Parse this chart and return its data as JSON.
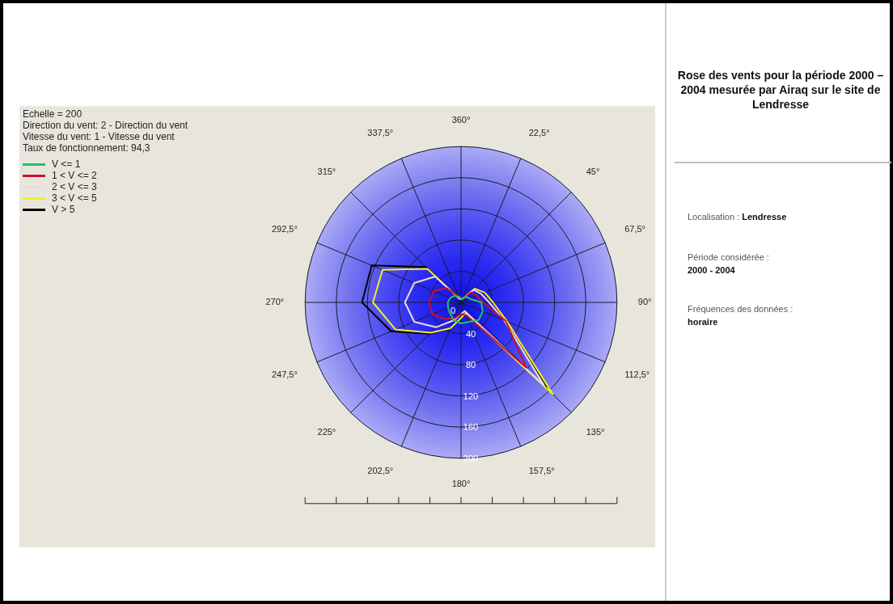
{
  "chart_data": {
    "type": "radar",
    "title": "Rose des vents pour la période 2000 – 2004 mesurée par Airaq sur le site de Lendresse",
    "categories": [
      "360°",
      "22,5°",
      "45°",
      "67,5°",
      "90°",
      "112,5°",
      "135°",
      "157,5°",
      "180°",
      "202,5°",
      "225°",
      "247,5°",
      "270°",
      "292,5°",
      "315°",
      "337,5°"
    ],
    "series": [
      {
        "name": "V <= 1",
        "color": "#1fc46a",
        "values": [
          5,
          6,
          10,
          12,
          26,
          30,
          32,
          27,
          27,
          25,
          20,
          18,
          17,
          15,
          12,
          8
        ]
      },
      {
        "name": "1 < V <= 2",
        "color": "#c8102e",
        "values": [
          5,
          5,
          18,
          22,
          28,
          62,
          118,
          18,
          15,
          22,
          30,
          40,
          41,
          38,
          26,
          8
        ]
      },
      {
        "name": "2 < V <= 3",
        "color": "#f0d8e0",
        "values": [
          5,
          5,
          23,
          28,
          36,
          60,
          150,
          12,
          15,
          25,
          45,
          65,
          72,
          65,
          47,
          5
        ]
      },
      {
        "name": "3 < V <= 5",
        "color": "#f0f020",
        "values": [
          5,
          5,
          25,
          33,
          41,
          64,
          166,
          15,
          20,
          36,
          55,
          91,
          113,
          109,
          61,
          5
        ]
      },
      {
        "name": "V > 5",
        "color": "#000000",
        "values": [
          5,
          5,
          25,
          33,
          41,
          64,
          160,
          15,
          20,
          36,
          57,
          97,
          127,
          124,
          64,
          7
        ]
      }
    ],
    "ylim": [
      0,
      200
    ],
    "yticks": [
      0,
      40,
      80,
      120,
      160,
      200
    ],
    "grid": true,
    "legend": "top left",
    "marker": "none",
    "line_style": "solid",
    "annotations": [
      "Echelle = 200",
      "Direction du vent: 2 - Direction du vent",
      "Vitesse du vent: 1 - Vitesse du vent",
      "Taux de fonctionnement: 94,3",
      "Localisation :",
      "Lendresse",
      "Période considérée :",
      "2000 - 2004",
      "Fréquences des données :",
      "horaire"
    ]
  }
}
